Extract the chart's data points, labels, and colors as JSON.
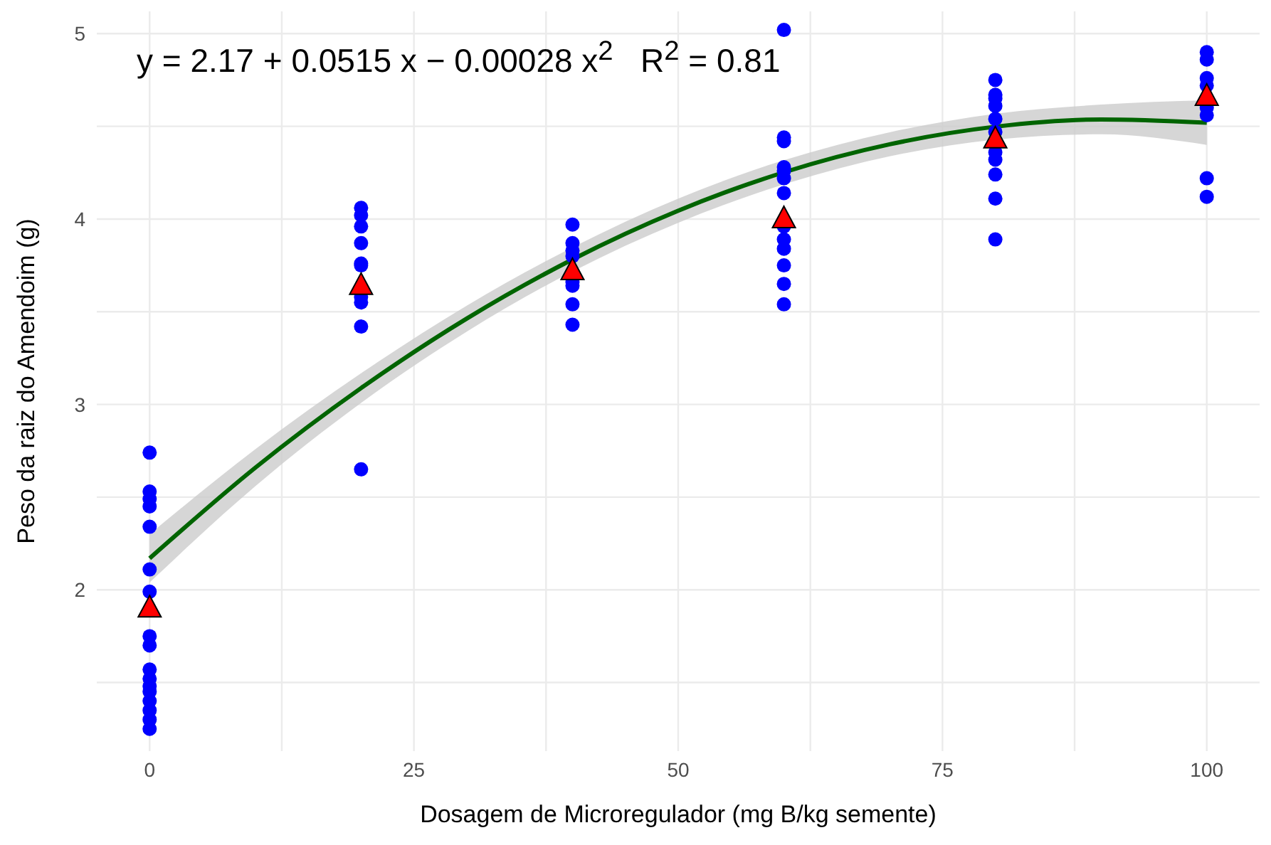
{
  "chart_data": {
    "type": "scatter",
    "xlabel": "Dosagem de Microregulador (mg B/kg semente)",
    "ylabel": "Peso da raiz do Amendoim (g)",
    "annotations": [
      "y = 2.17 + 0.0515 x − 0.00028 x$^{2}$   R$^{2}$ = 0.81"
    ],
    "xlim": [
      -5,
      105
    ],
    "xticks": [
      0,
      {
        "value": 12.5,
        "label": null
      },
      25,
      {
        "value": 37.5,
        "label": null
      },
      50,
      {
        "value": 62.5,
        "label": null
      },
      75,
      {
        "value": 87.5,
        "label": null
      },
      100
    ],
    "ylim": [
      1.13,
      5.12
    ],
    "yticks": [
      {
        "value": 1.5,
        "label": null
      },
      2,
      {
        "value": 2.5,
        "label": null
      },
      3,
      {
        "value": 3.5,
        "label": null
      },
      4,
      {
        "value": 4.5,
        "label": null
      },
      5
    ],
    "grid": true,
    "series": [
      {
        "marker": "circle",
        "color": "#0000ff",
        "x": [
          0,
          0,
          0,
          0,
          0,
          0,
          0,
          0,
          0,
          0,
          0,
          0,
          0,
          0,
          0,
          0,
          0,
          20,
          20,
          20,
          20,
          20,
          20,
          20,
          20,
          20,
          20,
          40,
          40,
          40,
          40,
          40,
          40,
          40,
          40,
          60,
          60,
          60,
          60,
          60,
          60,
          60,
          60,
          60,
          60,
          60,
          60,
          60,
          80,
          80,
          80,
          80,
          80,
          80,
          80,
          80,
          80,
          80,
          80,
          100,
          100,
          100,
          100,
          100,
          100,
          100,
          100
        ],
        "values": [
          2.74,
          2.53,
          2.49,
          2.45,
          2.34,
          2.11,
          1.99,
          1.75,
          1.7,
          1.57,
          1.52,
          1.48,
          1.45,
          1.4,
          1.35,
          1.3,
          1.25,
          4.06,
          4.02,
          3.96,
          3.87,
          3.76,
          3.75,
          3.58,
          3.55,
          3.42,
          2.65,
          3.97,
          3.87,
          3.83,
          3.8,
          3.66,
          3.64,
          3.54,
          3.43,
          5.02,
          4.44,
          4.42,
          4.28,
          4.26,
          4.22,
          4.14,
          3.96,
          3.89,
          3.84,
          3.75,
          3.65,
          3.54,
          4.75,
          4.67,
          4.65,
          4.61,
          4.54,
          4.36,
          4.32,
          4.24,
          4.11,
          3.89,
          4.47,
          4.9,
          4.86,
          4.76,
          4.72,
          4.6,
          4.56,
          4.22,
          4.12
        ]
      },
      {
        "type": "line",
        "marker": "none",
        "color": "#006400",
        "x": [
          0,
          10,
          20,
          30,
          40,
          50,
          60,
          70,
          80,
          90,
          100
        ],
        "values": [
          2.17,
          2.659,
          3.088,
          3.463,
          3.782,
          4.045,
          4.252,
          4.403,
          4.498,
          4.537,
          4.52
        ],
        "lower": [
          2.04,
          2.559,
          3.008,
          3.393,
          3.717,
          3.98,
          4.187,
          4.338,
          4.428,
          4.457,
          4.4
        ],
        "upper": [
          2.3,
          2.759,
          3.168,
          3.533,
          3.847,
          4.11,
          4.317,
          4.468,
          4.568,
          4.617,
          4.64
        ]
      },
      {
        "type": "scatter",
        "marker": "triangle",
        "color": "#ff0000",
        "x": [
          0,
          20,
          40,
          60,
          80,
          100
        ],
        "values": [
          1.9,
          3.64,
          3.72,
          4.0,
          4.43,
          4.66
        ]
      }
    ]
  }
}
